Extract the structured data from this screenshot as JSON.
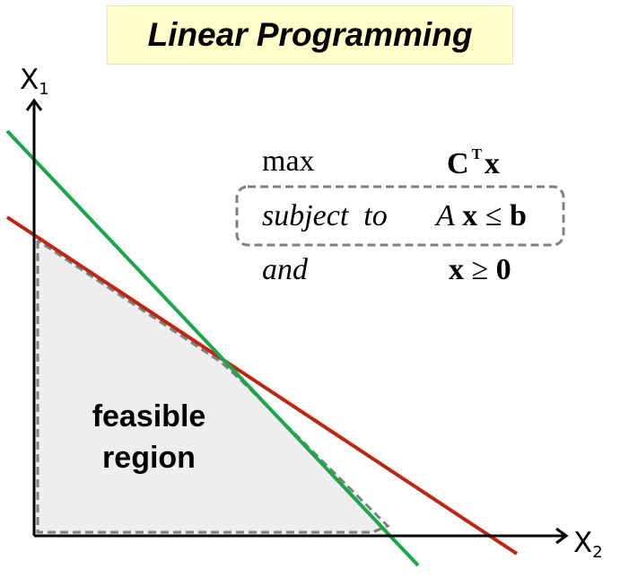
{
  "title": "Linear Programming",
  "axes": {
    "vertical": {
      "name": "X",
      "subscript": "1"
    },
    "horizontal": {
      "name": "X",
      "subscript": "2"
    }
  },
  "formulation": {
    "objective_keyword": "max",
    "objective_bold": "C",
    "objective_sup": "T",
    "objective_var": "x",
    "constraint_keyword": "subject  to",
    "constraint_matrix": "A",
    "constraint_var": "x",
    "constraint_rel": "≤",
    "constraint_rhs": "b",
    "nonneg_keyword": "and",
    "nonneg_var": "x",
    "nonneg_rel": "≥",
    "nonneg_rhs": "0"
  },
  "region": {
    "line1": "feasible",
    "line2": "region"
  },
  "colors": {
    "title_background": "#ffffcc",
    "constraint_line_1": "#c0260f",
    "constraint_line_2": "#1aa64b",
    "region_fill": "#eeeeee",
    "dashed_outline": "#808080"
  }
}
